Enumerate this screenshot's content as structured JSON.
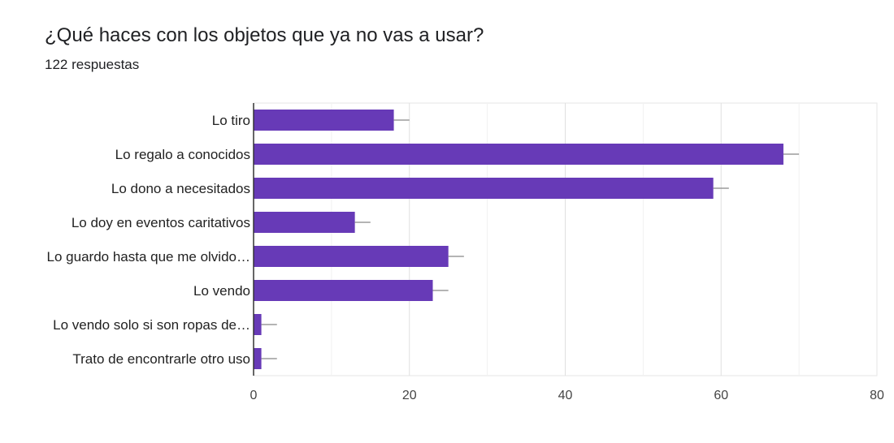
{
  "chart_data": {
    "type": "bar",
    "orientation": "horizontal",
    "title": "¿Qué haces con los objetos que ya no vas a usar?",
    "subtitle": "122 respuestas",
    "categories": [
      "Lo tiro",
      "Lo regalo a conocidos",
      "Lo dono a necesitados",
      "Lo doy en eventos caritativos",
      "Lo guardo hasta que me olvido…",
      "Lo vendo",
      "Lo vendo solo si son ropas de…",
      "Trato de encontrarle otro uso"
    ],
    "values": [
      18,
      68,
      59,
      13,
      25,
      23,
      1,
      1
    ],
    "error_bars": true,
    "xlim": [
      0,
      80
    ],
    "xticks": [
      0,
      20,
      40,
      60,
      80
    ],
    "grid": true,
    "bar_color": "#673ab7",
    "error_color": "#888888"
  }
}
